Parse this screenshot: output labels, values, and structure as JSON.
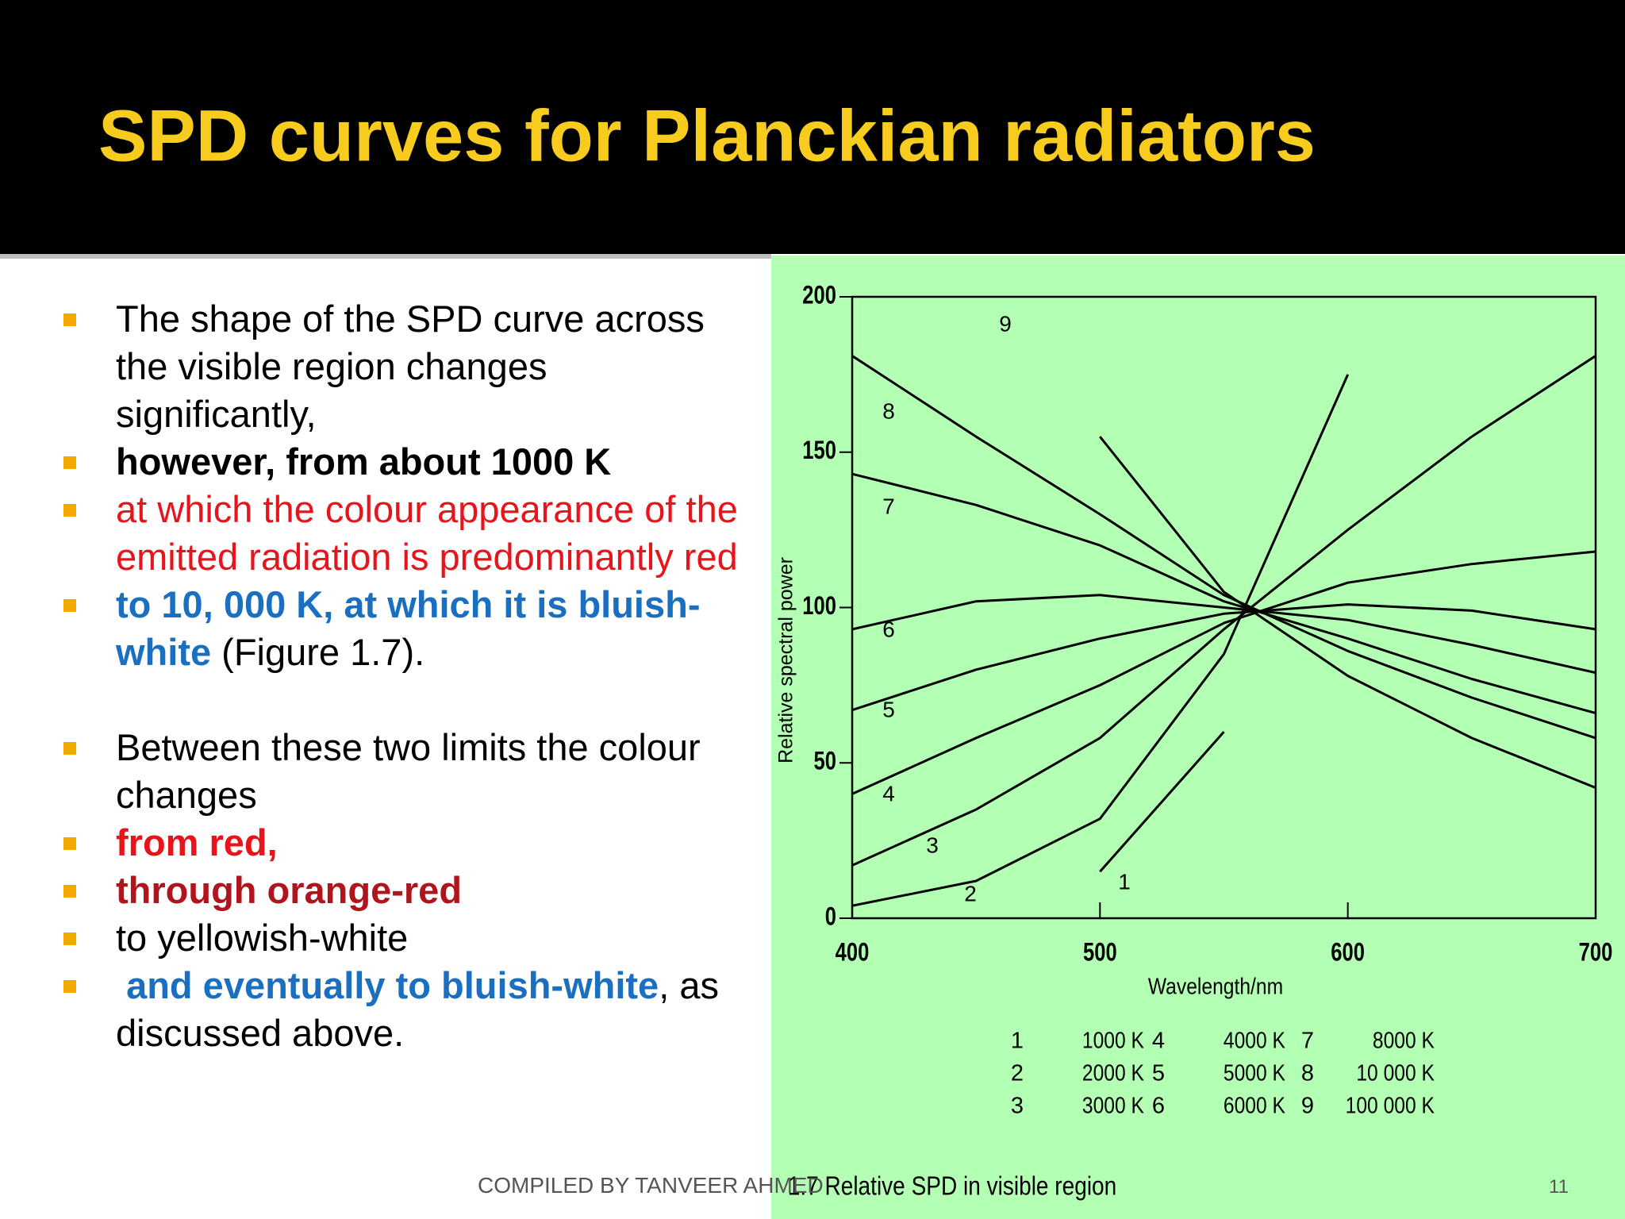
{
  "slide": {
    "title": "SPD curves for Planckian radiators",
    "bullets": [
      {
        "runs": [
          {
            "text": "The shape of the SPD curve across the visible region changes significantly,",
            "color": "#000000",
            "bold": false
          }
        ]
      },
      {
        "runs": [
          {
            "text": "however, from about 1000 K",
            "color": "#000000",
            "bold": true
          }
        ]
      },
      {
        "runs": [
          {
            "text": "at which the colour appearance of the emitted radiation is predominantly red",
            "color": "#e8141c",
            "bold": false
          }
        ]
      },
      {
        "runs": [
          {
            "text": "to 10, 000 K, at which it is bluish-white",
            "color": "#1a6fc0",
            "bold": true
          },
          {
            "text": " (Figure 1.7).",
            "color": "#000000",
            "bold": false
          }
        ]
      },
      {
        "runs": [
          {
            "text": "Between these two limits the colour changes",
            "color": "#000000",
            "bold": false
          }
        ],
        "gap_before": true
      },
      {
        "runs": [
          {
            "text": "from red,",
            "color": "#e8141c",
            "bold": true
          }
        ]
      },
      {
        "runs": [
          {
            "text": "through orange-red",
            "color": "#b0141c",
            "bold": true
          }
        ]
      },
      {
        "runs": [
          {
            "text": "to yellowish-white",
            "color": "#000000",
            "bold": false
          }
        ]
      },
      {
        "runs": [
          {
            "text": " and eventually to bluish-white",
            "color": "#1a6fc0",
            "bold": true
          },
          {
            "text": ", as discussed above.",
            "color": "#000000",
            "bold": false
          }
        ]
      }
    ],
    "footer": "COMPILED BY TANVEER AHMED",
    "page_number": "11",
    "caption": "1.7 Relative SPD in visible region"
  },
  "chart_data": {
    "type": "line",
    "x_label": "Wavelength/nm",
    "y_label": "Relative spectral power",
    "x": [
      400,
      450,
      500,
      550,
      600,
      650,
      700
    ],
    "xlim": [
      400,
      700
    ],
    "xticks": [
      400,
      500,
      600,
      700
    ],
    "ylim": [
      0,
      200
    ],
    "yticks": [
      0,
      50,
      100,
      150,
      200
    ],
    "series": [
      {
        "label": "1",
        "name": "1000 K",
        "color": "#000000",
        "values": [
          null,
          null,
          15,
          60,
          null,
          null,
          null
        ]
      },
      {
        "label": "2",
        "name": "2000 K",
        "color": "#000000",
        "values": [
          4,
          12,
          32,
          85,
          175,
          null,
          null
        ]
      },
      {
        "label": "3",
        "name": "3000 K",
        "color": "#000000",
        "values": [
          17,
          35,
          58,
          93,
          125,
          155,
          181
        ]
      },
      {
        "label": "4",
        "name": "4000 K",
        "color": "#000000",
        "values": [
          40,
          58,
          75,
          95,
          108,
          114,
          118
        ]
      },
      {
        "label": "5",
        "name": "5000 K",
        "color": "#000000",
        "values": [
          67,
          80,
          90,
          98,
          101,
          99,
          93
        ]
      },
      {
        "label": "6",
        "name": "6000 K",
        "color": "#000000",
        "values": [
          93,
          102,
          104,
          100,
          96,
          88,
          79
        ]
      },
      {
        "label": "7",
        "name": "8000 K",
        "color": "#000000",
        "values": [
          143,
          133,
          120,
          102,
          90,
          77,
          66
        ]
      },
      {
        "label": "8",
        "name": "10 000 K",
        "color": "#000000",
        "values": [
          181,
          155,
          130,
          104,
          86,
          71,
          58
        ]
      },
      {
        "label": "9",
        "name": "100 000 K",
        "color": "#000000",
        "values": [
          null,
          null,
          155,
          105,
          78,
          58,
          42
        ]
      }
    ]
  }
}
